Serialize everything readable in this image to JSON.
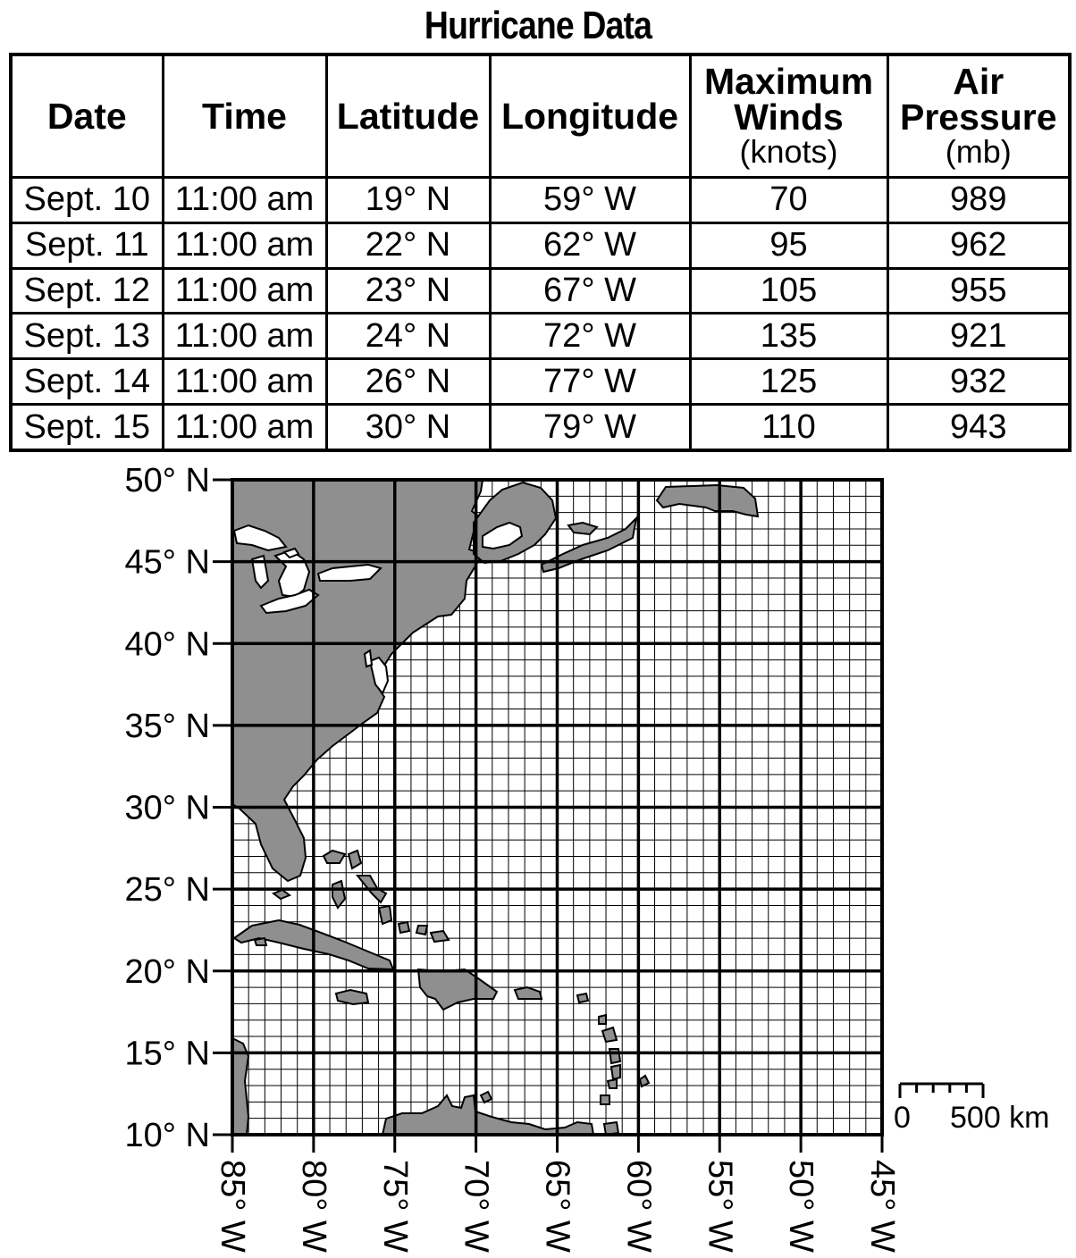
{
  "title": "Hurricane Data",
  "table": {
    "headers": [
      {
        "label": "Date",
        "unit": ""
      },
      {
        "label": "Time",
        "unit": ""
      },
      {
        "label": "Latitude",
        "unit": ""
      },
      {
        "label": "Longitude",
        "unit": ""
      },
      {
        "label": "Maximum Winds",
        "unit": "(knots)"
      },
      {
        "label": "Air Pressure",
        "unit": "(mb)"
      }
    ],
    "rows": [
      [
        "Sept. 10",
        "11:00 am",
        "19° N",
        "59° W",
        "70",
        "989"
      ],
      [
        "Sept. 11",
        "11:00 am",
        "22° N",
        "62° W",
        "95",
        "962"
      ],
      [
        "Sept. 12",
        "11:00 am",
        "23° N",
        "67° W",
        "105",
        "955"
      ],
      [
        "Sept. 13",
        "11:00 am",
        "24° N",
        "72° W",
        "135",
        "921"
      ],
      [
        "Sept. 14",
        "11:00 am",
        "26° N",
        "77° W",
        "125",
        "932"
      ],
      [
        "Sept. 15",
        "11:00 am",
        "30° N",
        "79° W",
        "110",
        "943"
      ]
    ]
  },
  "map": {
    "lat_labels": [
      "50° N",
      "45° N",
      "40° N",
      "35° N",
      "30° N",
      "25° N",
      "20° N",
      "15° N",
      "10° N"
    ],
    "lon_labels": [
      "85° W",
      "80° W",
      "75° W",
      "70° W",
      "65° W",
      "60° W",
      "55° W",
      "50° W",
      "45° W"
    ],
    "scale": {
      "start_label": "0",
      "end_label": "500 km"
    },
    "colors": {
      "land": "#8f8f8f",
      "grid": "#000000",
      "background": "#ffffff"
    }
  }
}
